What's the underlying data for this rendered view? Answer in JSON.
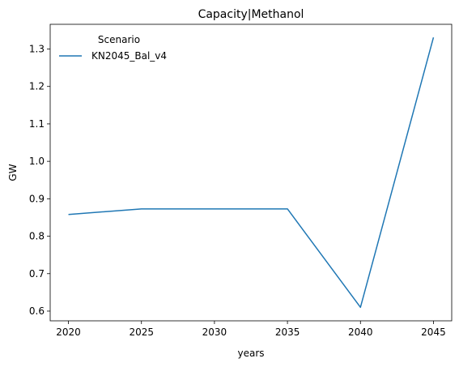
{
  "chart_data": {
    "type": "line",
    "title": "Capacity|Methanol",
    "xlabel": "years",
    "ylabel": "GW",
    "x": [
      2020,
      2025,
      2030,
      2035,
      2040,
      2045
    ],
    "x_ticks": [
      "2020",
      "2025",
      "2030",
      "2035",
      "2040",
      "2045"
    ],
    "y_ticks": [
      "0.6",
      "0.7",
      "0.8",
      "0.9",
      "1.0",
      "1.1",
      "1.2",
      "1.3"
    ],
    "xlim": [
      2018.75,
      2046.25
    ],
    "ylim": [
      0.574,
      1.366
    ],
    "grid": false,
    "legend": {
      "title": "Scenario",
      "placement": "top-left"
    },
    "series": [
      {
        "name": "KN2045_Bal_v4",
        "color": "#1f77b4",
        "values": [
          0.858,
          0.873,
          0.873,
          0.873,
          0.61,
          1.331
        ]
      }
    ]
  }
}
